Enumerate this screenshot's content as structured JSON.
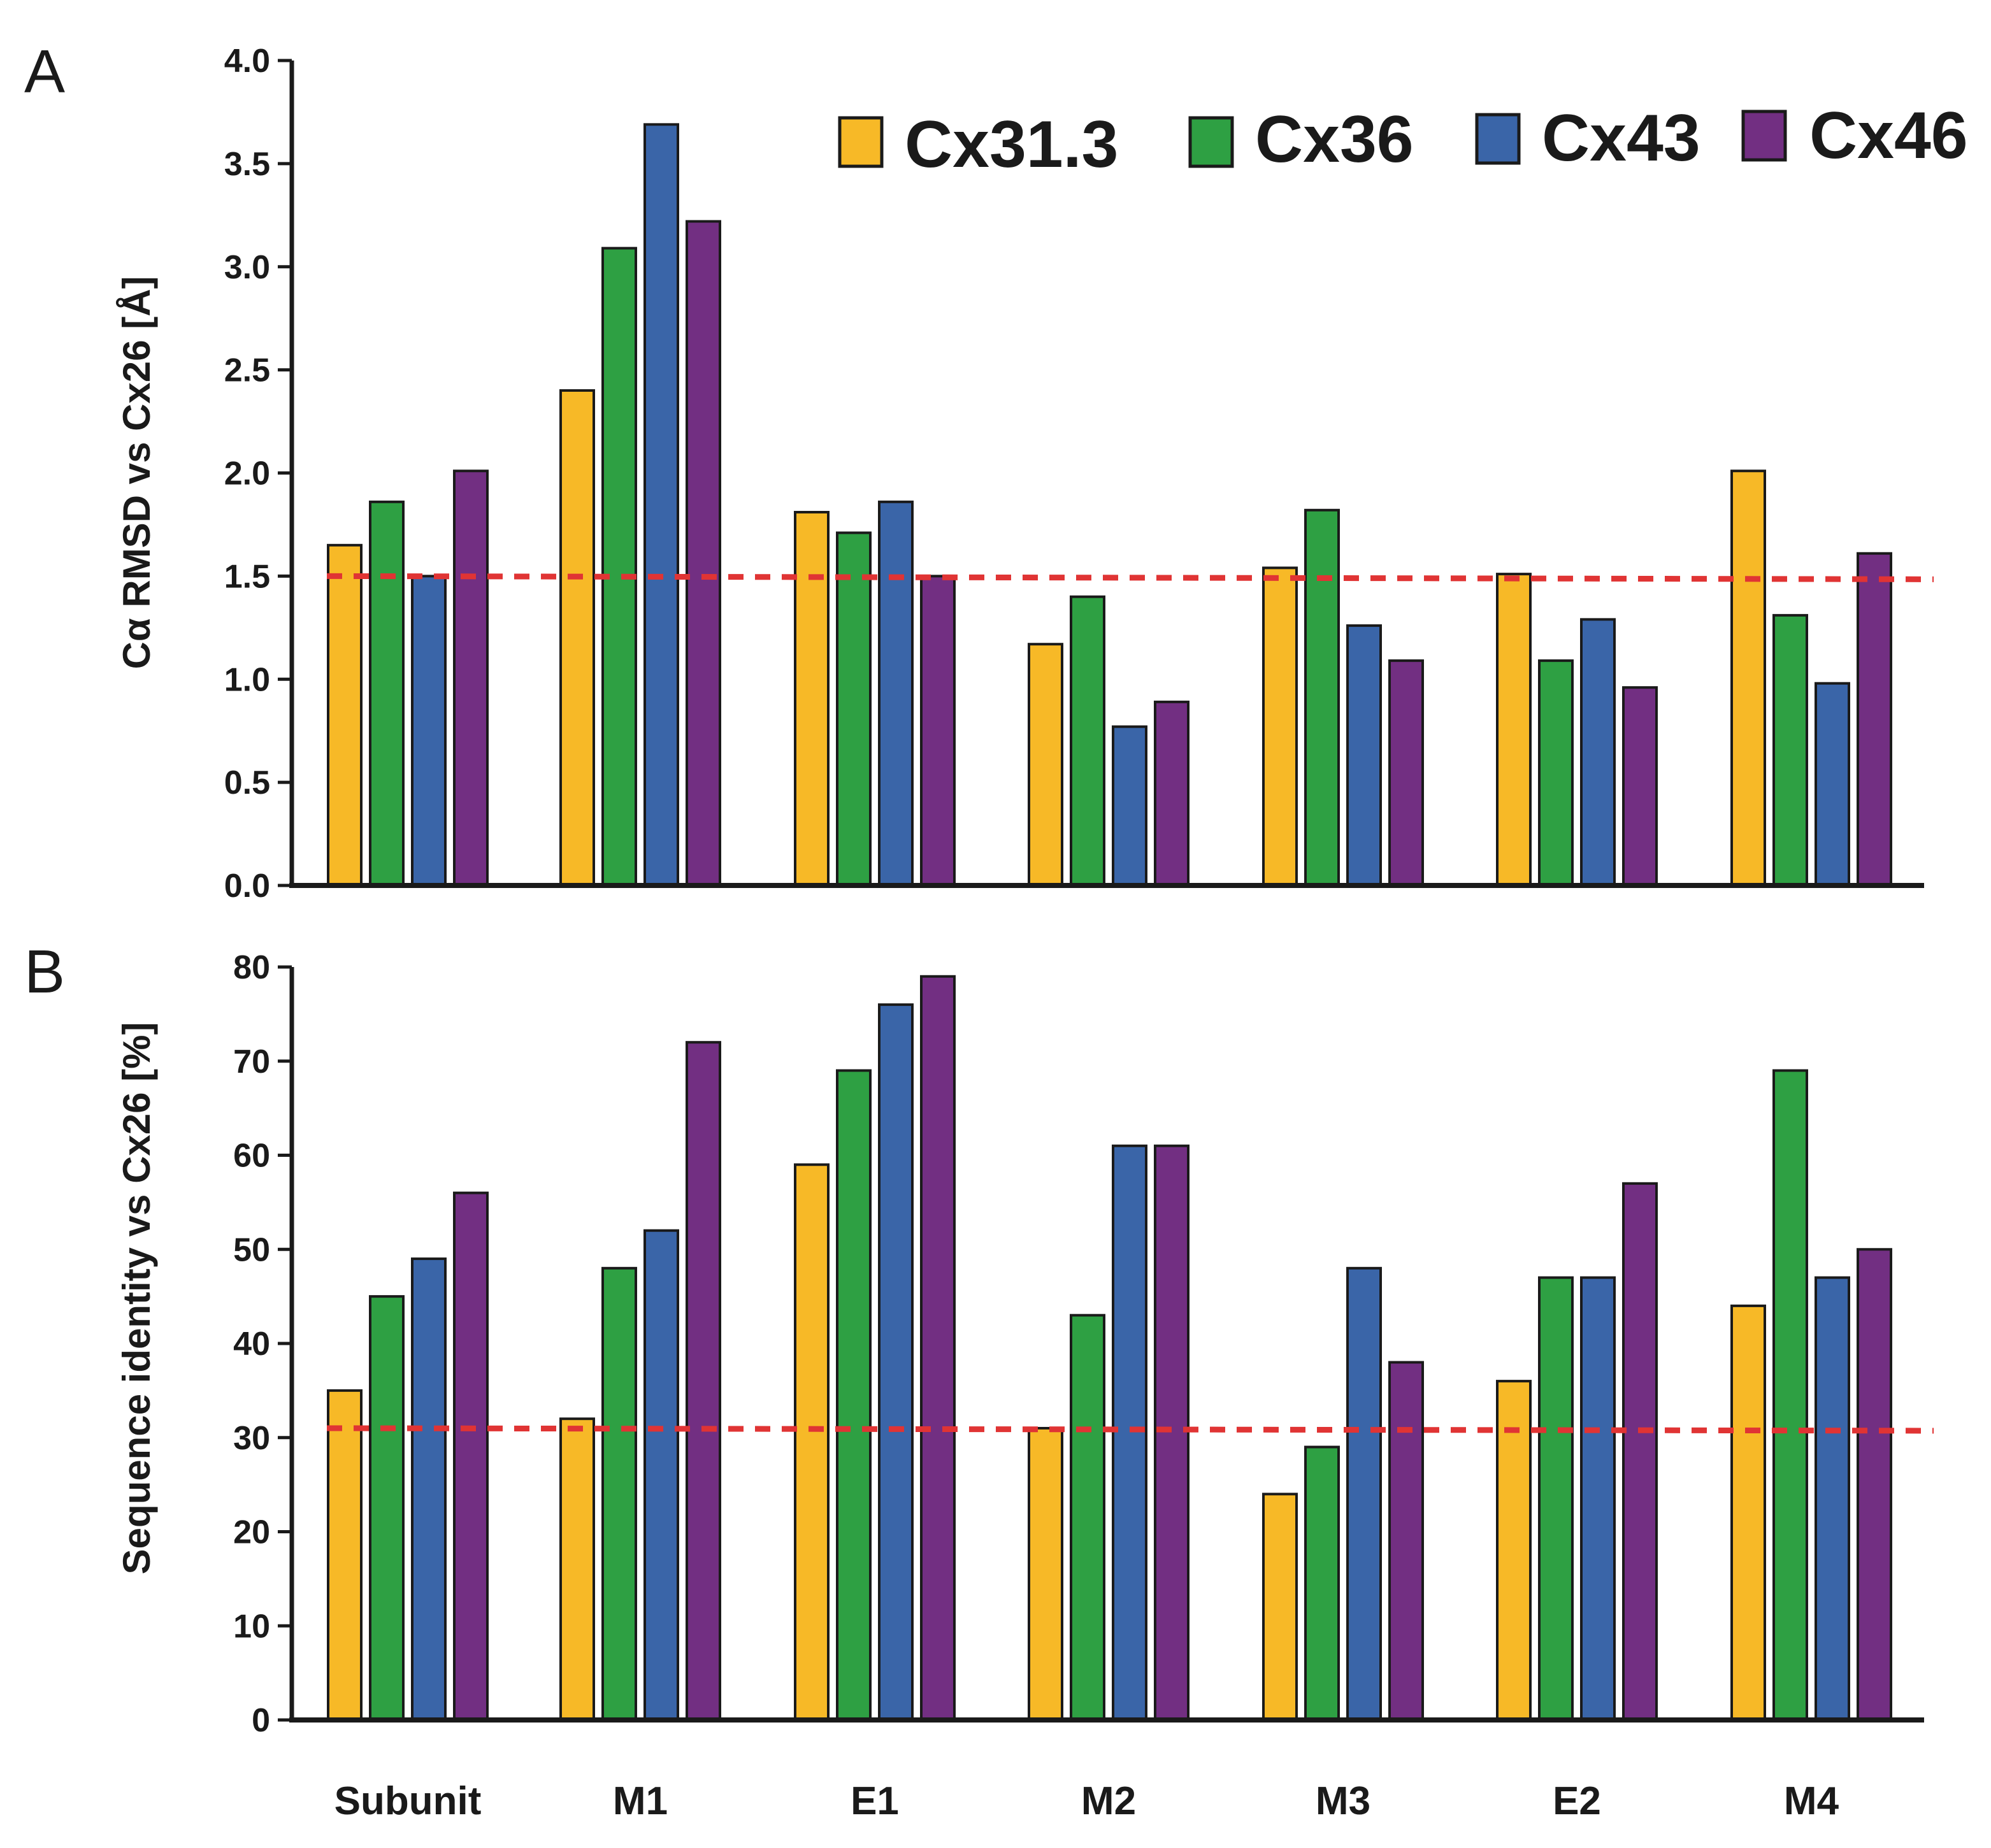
{
  "chart_data": [
    {
      "panel": "A",
      "type": "bar",
      "ylabel": "Cα RMSD vs Cx26 [Å]",
      "ylim": [
        0,
        4.0
      ],
      "yticks": [
        "0.0",
        "0.5",
        "1.0",
        "1.5",
        "2.0",
        "2.5",
        "3.0",
        "3.5",
        "4.0"
      ],
      "reference_line": 1.5,
      "categories": [
        "Subunit",
        "M1",
        "E1",
        "M2",
        "M3",
        "E2",
        "M4"
      ],
      "series": [
        {
          "name": "Cx31.3",
          "color": "#f7b927",
          "values": [
            1.65,
            2.4,
            1.81,
            1.17,
            1.54,
            1.51,
            2.01
          ]
        },
        {
          "name": "Cx36",
          "color": "#2ea043",
          "values": [
            1.86,
            3.09,
            1.71,
            1.4,
            1.82,
            1.09,
            1.31
          ]
        },
        {
          "name": "Cx43",
          "color": "#3a65a8",
          "values": [
            1.5,
            3.69,
            1.86,
            0.77,
            1.26,
            1.29,
            0.98
          ]
        },
        {
          "name": "Cx46",
          "color": "#722f82",
          "values": [
            2.01,
            3.22,
            1.5,
            0.89,
            1.09,
            0.96,
            1.61
          ]
        }
      ]
    },
    {
      "panel": "B",
      "type": "bar",
      "ylabel": "Sequence identity vs Cx26 [%]",
      "ylim": [
        0,
        80
      ],
      "yticks": [
        "0",
        "10",
        "20",
        "30",
        "40",
        "50",
        "60",
        "70",
        "80"
      ],
      "reference_line": 31,
      "categories": [
        "Subunit",
        "M1",
        "E1",
        "M2",
        "M3",
        "E2",
        "M4"
      ],
      "series": [
        {
          "name": "Cx31.3",
          "color": "#f7b927",
          "values": [
            35,
            32,
            59,
            31,
            24,
            36,
            44
          ]
        },
        {
          "name": "Cx36",
          "color": "#2ea043",
          "values": [
            45,
            48,
            69,
            43,
            29,
            47,
            69
          ]
        },
        {
          "name": "Cx43",
          "color": "#3a65a8",
          "values": [
            49,
            52,
            76,
            61,
            48,
            47,
            47
          ]
        },
        {
          "name": "Cx46",
          "color": "#722f82",
          "values": [
            56,
            72,
            79,
            61,
            38,
            57,
            50
          ]
        }
      ]
    }
  ],
  "legend": [
    {
      "name": "Cx31.3",
      "color": "#f7b927"
    },
    {
      "name": "Cx36",
      "color": "#2ea043"
    },
    {
      "name": "Cx43",
      "color": "#3a65a8"
    },
    {
      "name": "Cx46",
      "color": "#722f82"
    }
  ],
  "reference_line_color": "#e03434"
}
